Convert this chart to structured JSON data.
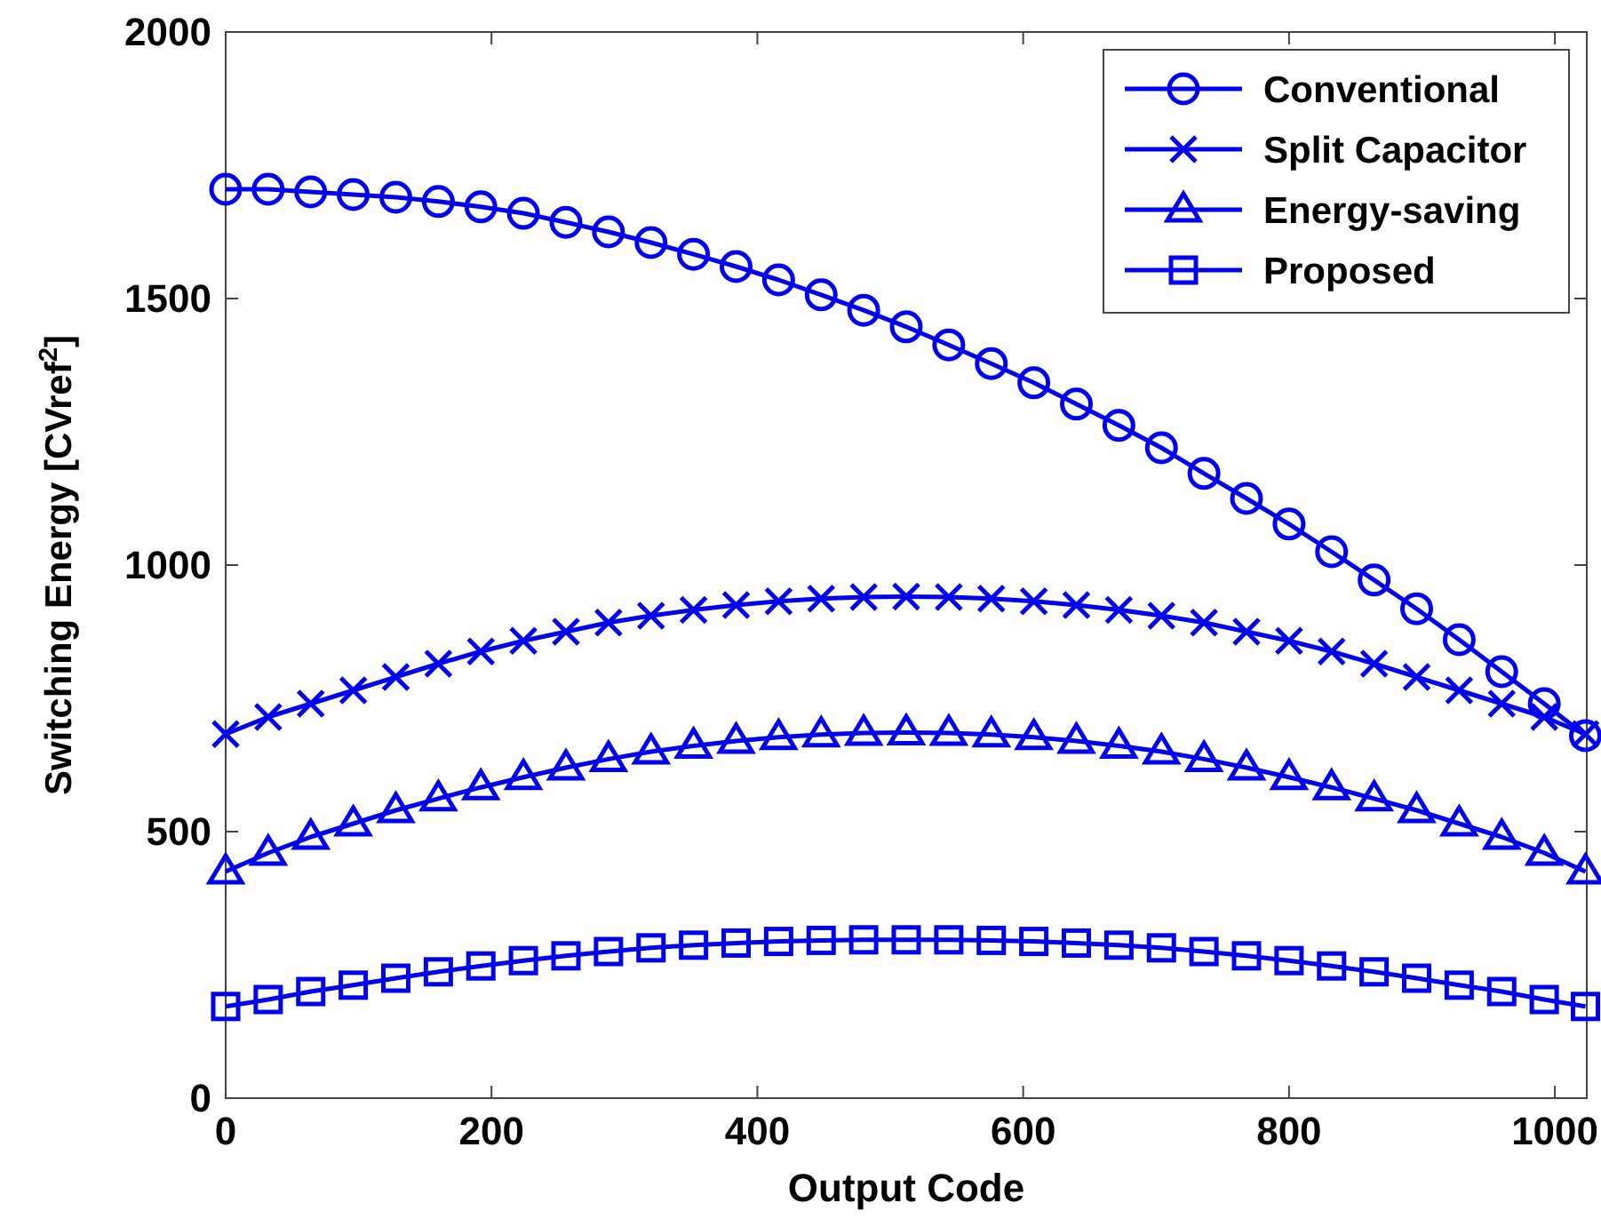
{
  "chart_data": {
    "type": "line",
    "xlabel": "Output Code",
    "ylabel": "Switching Energy [CVref$^{2}$]",
    "x": [
      0,
      32,
      64,
      96,
      128,
      160,
      192,
      224,
      256,
      288,
      320,
      352,
      384,
      416,
      448,
      480,
      512,
      544,
      576,
      608,
      640,
      672,
      704,
      736,
      768,
      800,
      832,
      864,
      896,
      928,
      960,
      992,
      1023
    ],
    "xlim": [
      0,
      1024
    ],
    "xticks": [
      0,
      200,
      400,
      600,
      800,
      1000
    ],
    "ylim": [
      0,
      2000
    ],
    "yticks": [
      0,
      500,
      1000,
      1500,
      2000
    ],
    "grid": false,
    "legend": "top right",
    "line_style": "solid",
    "series": [
      {
        "name": "Conventional",
        "color": "#0000ee",
        "marker": "circle",
        "values": [
          1705,
          1705,
          1700,
          1695,
          1690,
          1682,
          1672,
          1660,
          1643,
          1625,
          1605,
          1583,
          1560,
          1535,
          1507,
          1478,
          1447,
          1413,
          1378,
          1342,
          1302,
          1262,
          1220,
          1172,
          1125,
          1077,
          1025,
          972,
          918,
          860,
          800,
          740,
          680
        ]
      },
      {
        "name": "Split Capacitor",
        "color": "#0000ee",
        "marker": "cross",
        "values": [
          683,
          715,
          740,
          765,
          790,
          815,
          838,
          858,
          875,
          892,
          905,
          916,
          925,
          932,
          937,
          940,
          941,
          940,
          937,
          932,
          925,
          916,
          905,
          892,
          875,
          858,
          838,
          815,
          790,
          765,
          740,
          715,
          683
        ]
      },
      {
        "name": "Energy-saving",
        "color": "#0000ee",
        "marker": "triangle",
        "values": [
          425,
          460,
          490,
          515,
          540,
          562,
          583,
          602,
          620,
          636,
          650,
          661,
          670,
          677,
          682,
          685,
          686,
          685,
          682,
          677,
          670,
          661,
          650,
          636,
          620,
          602,
          583,
          562,
          540,
          515,
          490,
          460,
          425
        ]
      },
      {
        "name": "Proposed",
        "color": "#0000ee",
        "marker": "square",
        "values": [
          172,
          185,
          200,
          212,
          225,
          237,
          248,
          258,
          267,
          275,
          282,
          287,
          291,
          294,
          296,
          297,
          297,
          297,
          296,
          294,
          291,
          287,
          282,
          275,
          267,
          258,
          248,
          237,
          225,
          212,
          200,
          185,
          172
        ]
      }
    ]
  }
}
